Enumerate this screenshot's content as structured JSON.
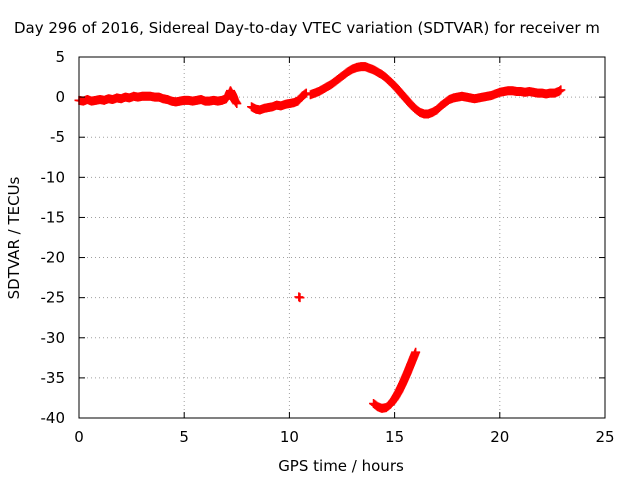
{
  "chart_data": {
    "type": "scatter",
    "title": "Day 296 of 2016, Sidereal Day-to-day VTEC variation (SDTVAR) for receiver m",
    "xlabel": "GPS time / hours",
    "ylabel": "SDTVAR / TECUs",
    "xlim": [
      0,
      25
    ],
    "ylim": [
      -40,
      5
    ],
    "xticks": [
      0,
      5,
      10,
      15,
      20,
      25
    ],
    "yticks": [
      -40,
      -35,
      -30,
      -25,
      -20,
      -15,
      -10,
      -5,
      0,
      5
    ],
    "grid": true,
    "legend": "none",
    "point_marker": "plus",
    "series": [
      {
        "color": "#ff0000",
        "segments": [
          [
            [
              0.0,
              -0.4
            ],
            [
              0.2,
              -0.5
            ],
            [
              0.4,
              -0.3
            ],
            [
              0.6,
              -0.5
            ],
            [
              0.8,
              -0.4
            ],
            [
              1.0,
              -0.3
            ],
            [
              1.2,
              -0.4
            ],
            [
              1.4,
              -0.2
            ],
            [
              1.6,
              -0.3
            ],
            [
              1.8,
              -0.1
            ],
            [
              2.0,
              -0.2
            ],
            [
              2.2,
              0.0
            ],
            [
              2.4,
              -0.1
            ],
            [
              2.6,
              0.1
            ],
            [
              2.8,
              0.0
            ],
            [
              3.0,
              0.1
            ],
            [
              3.2,
              0.1
            ],
            [
              3.4,
              0.1
            ],
            [
              3.6,
              0.0
            ],
            [
              3.8,
              0.0
            ],
            [
              4.0,
              -0.2
            ],
            [
              4.2,
              -0.3
            ],
            [
              4.4,
              -0.5
            ],
            [
              4.6,
              -0.6
            ],
            [
              4.8,
              -0.5
            ],
            [
              5.0,
              -0.4
            ],
            [
              5.2,
              -0.4
            ],
            [
              5.4,
              -0.5
            ],
            [
              5.6,
              -0.4
            ],
            [
              5.8,
              -0.3
            ],
            [
              6.0,
              -0.5
            ],
            [
              6.2,
              -0.5
            ],
            [
              6.4,
              -0.4
            ],
            [
              6.6,
              -0.5
            ],
            [
              6.8,
              -0.4
            ],
            [
              7.0,
              -0.2
            ],
            [
              7.1,
              0.2
            ],
            [
              7.2,
              0.8
            ],
            [
              7.3,
              0.3
            ],
            [
              7.4,
              -0.4
            ],
            [
              7.5,
              -0.8
            ]
          ],
          [
            [
              8.2,
              -1.2
            ],
            [
              8.4,
              -1.5
            ],
            [
              8.6,
              -1.6
            ],
            [
              8.8,
              -1.4
            ],
            [
              9.0,
              -1.3
            ],
            [
              9.2,
              -1.2
            ],
            [
              9.4,
              -1.0
            ],
            [
              9.6,
              -1.1
            ],
            [
              9.8,
              -0.9
            ],
            [
              10.0,
              -0.8
            ],
            [
              10.2,
              -0.7
            ],
            [
              10.4,
              -0.5
            ],
            [
              10.6,
              0.1
            ],
            [
              10.8,
              0.5
            ]
          ],
          [
            [
              11.0,
              0.3
            ],
            [
              11.2,
              0.5
            ],
            [
              11.4,
              0.7
            ],
            [
              11.6,
              1.0
            ],
            [
              11.8,
              1.3
            ],
            [
              12.0,
              1.6
            ],
            [
              12.2,
              2.0
            ],
            [
              12.4,
              2.4
            ],
            [
              12.6,
              2.8
            ],
            [
              12.8,
              3.2
            ],
            [
              13.0,
              3.5
            ],
            [
              13.2,
              3.7
            ],
            [
              13.4,
              3.8
            ],
            [
              13.6,
              3.8
            ],
            [
              13.8,
              3.6
            ],
            [
              14.0,
              3.4
            ],
            [
              14.2,
              3.1
            ],
            [
              14.4,
              2.8
            ],
            [
              14.6,
              2.4
            ],
            [
              14.8,
              1.9
            ],
            [
              15.0,
              1.4
            ],
            [
              15.2,
              0.8
            ],
            [
              15.4,
              0.2
            ],
            [
              15.6,
              -0.4
            ],
            [
              15.8,
              -1.0
            ],
            [
              16.0,
              -1.5
            ],
            [
              16.2,
              -1.9
            ],
            [
              16.4,
              -2.1
            ],
            [
              16.6,
              -2.1
            ],
            [
              16.8,
              -1.9
            ],
            [
              17.0,
              -1.6
            ],
            [
              17.2,
              -1.1
            ],
            [
              17.4,
              -0.7
            ],
            [
              17.6,
              -0.3
            ],
            [
              17.8,
              -0.1
            ],
            [
              18.0,
              0.0
            ],
            [
              18.2,
              0.1
            ],
            [
              18.4,
              0.0
            ],
            [
              18.6,
              -0.1
            ],
            [
              18.8,
              -0.2
            ],
            [
              19.0,
              -0.1
            ],
            [
              19.2,
              0.0
            ],
            [
              19.4,
              0.1
            ],
            [
              19.6,
              0.2
            ],
            [
              19.8,
              0.4
            ],
            [
              20.0,
              0.6
            ],
            [
              20.2,
              0.7
            ],
            [
              20.4,
              0.8
            ],
            [
              20.6,
              0.8
            ],
            [
              20.8,
              0.7
            ],
            [
              21.0,
              0.7
            ],
            [
              21.2,
              0.6
            ],
            [
              21.4,
              0.7
            ],
            [
              21.6,
              0.6
            ],
            [
              21.8,
              0.5
            ],
            [
              22.0,
              0.5
            ],
            [
              22.2,
              0.4
            ],
            [
              22.4,
              0.5
            ],
            [
              22.6,
              0.5
            ],
            [
              22.8,
              0.7
            ],
            [
              22.9,
              0.9
            ]
          ],
          [
            [
              10.45,
              -24.9
            ],
            [
              10.5,
              -25.0
            ]
          ],
          [
            [
              14.0,
              -38.2
            ],
            [
              14.2,
              -38.6
            ],
            [
              14.4,
              -38.8
            ],
            [
              14.6,
              -38.7
            ],
            [
              14.8,
              -38.3
            ],
            [
              15.0,
              -37.6
            ],
            [
              15.2,
              -36.7
            ],
            [
              15.4,
              -35.6
            ],
            [
              15.6,
              -34.4
            ],
            [
              15.8,
              -33.1
            ],
            [
              16.0,
              -31.8
            ]
          ]
        ]
      }
    ]
  }
}
